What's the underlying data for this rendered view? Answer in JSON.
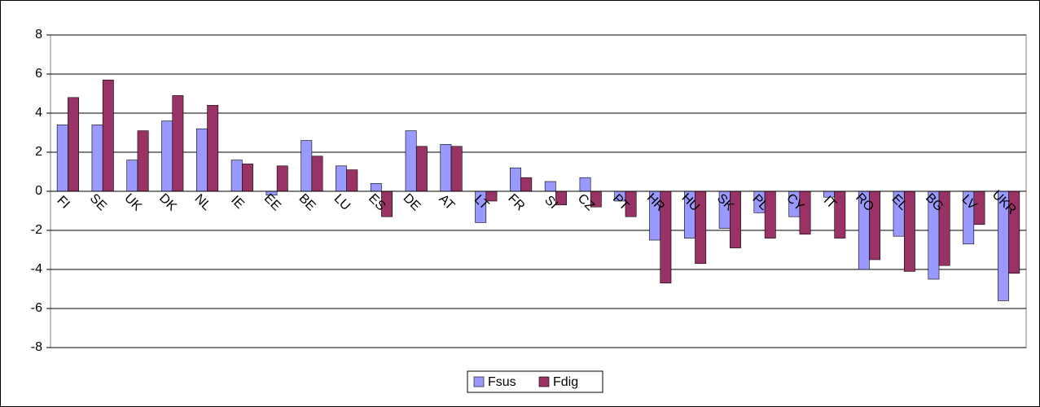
{
  "chart_data": {
    "type": "bar",
    "categories": [
      "FI",
      "SE",
      "UK",
      "DK",
      "NL",
      "IE",
      "EE",
      "BE",
      "LU",
      "ES",
      "DE",
      "AT",
      "LT",
      "FR",
      "SI",
      "CZ",
      "PT",
      "HR",
      "HU",
      "SK",
      "PL",
      "CY",
      "IT",
      "RO",
      "EL",
      "BG",
      "LV",
      "UKR"
    ],
    "series": [
      {
        "name": "Fsus",
        "color": "#9999ff",
        "values": [
          3.4,
          3.4,
          1.6,
          3.6,
          3.2,
          1.6,
          -0.2,
          2.6,
          1.3,
          0.4,
          3.1,
          2.4,
          -1.6,
          1.2,
          0.5,
          0.7,
          -0.5,
          -2.5,
          -2.4,
          -1.9,
          -1.1,
          -1.3,
          -0.3,
          -4.0,
          -2.3,
          -4.5,
          -2.7,
          -5.6
        ]
      },
      {
        "name": "Fdig",
        "color": "#993366",
        "values": [
          4.8,
          5.7,
          3.1,
          4.9,
          4.4,
          1.4,
          1.3,
          1.8,
          1.1,
          -1.3,
          2.3,
          2.3,
          -0.5,
          0.7,
          -0.7,
          -0.8,
          -1.3,
          -4.7,
          -3.7,
          -2.9,
          -2.4,
          -2.2,
          -2.4,
          -3.5,
          -4.1,
          -3.8,
          -1.7,
          -4.2
        ]
      }
    ],
    "ylim": [
      -8,
      8
    ],
    "yticks": [
      -8,
      -6,
      -4,
      -2,
      0,
      2,
      4,
      6,
      8
    ],
    "grid": true,
    "legend": "bottom"
  }
}
